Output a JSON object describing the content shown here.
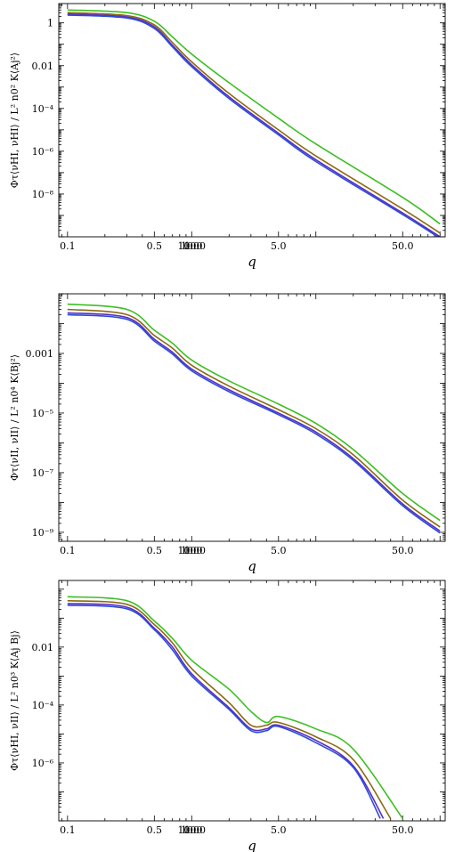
{
  "chart_data": [
    {
      "type": "line",
      "title": "",
      "xlabel": "q",
      "ylabel": "Φτ⟨νHI, νHI⟩ / L² n0² K⟨Aj²⟩",
      "xscale": "log",
      "yscale": "log",
      "xlim": [
        0.085,
        110
      ],
      "ylim": [
        1e-10,
        8
      ],
      "xticks": [
        "0.1",
        "0.5",
        "1.0",
        "5.0",
        "10.0",
        "50.0",
        "100.0"
      ],
      "yticks": [
        "1",
        "0.01",
        "10⁻⁴",
        "10⁻⁶",
        "10⁻⁸"
      ],
      "legend": "none",
      "series": [
        {
          "color": "#3CBF22",
          "values": [
            [
              0.1,
              4.0
            ],
            [
              0.3,
              3.0
            ],
            [
              0.5,
              1.2
            ],
            [
              0.7,
              0.22
            ],
            [
              1.0,
              0.035
            ],
            [
              2.0,
              0.0016
            ],
            [
              5.0,
              3.5e-05
            ],
            [
              10.0,
              2.2e-06
            ],
            [
              50.0,
              7e-09
            ],
            [
              100.0,
              4e-10
            ]
          ]
        },
        {
          "color": "#8B6A10",
          "values": [
            [
              0.1,
              3.0
            ],
            [
              0.3,
              2.2
            ],
            [
              0.5,
              0.8
            ],
            [
              0.7,
              0.12
            ],
            [
              1.0,
              0.015
            ],
            [
              2.0,
              0.0005
            ],
            [
              5.0,
              1e-05
            ],
            [
              10.0,
              6e-07
            ],
            [
              50.0,
              2e-09
            ],
            [
              100.0,
              1.5e-10
            ]
          ]
        },
        {
          "color": "#5A2FC0",
          "values": [
            [
              0.1,
              2.6
            ],
            [
              0.3,
              1.9
            ],
            [
              0.5,
              0.65
            ],
            [
              0.7,
              0.09
            ],
            [
              1.0,
              0.011
            ],
            [
              2.0,
              0.00035
            ],
            [
              5.0,
              7e-06
            ],
            [
              10.0,
              4e-07
            ],
            [
              50.0,
              1.3e-09
            ],
            [
              100.0,
              1e-10
            ]
          ]
        },
        {
          "color": "#2B4DDB",
          "values": [
            [
              0.1,
              2.3
            ],
            [
              0.3,
              1.7
            ],
            [
              0.5,
              0.55
            ],
            [
              0.7,
              0.075
            ],
            [
              1.0,
              0.009
            ],
            [
              2.0,
              0.00029
            ],
            [
              5.0,
              5.8e-06
            ],
            [
              10.0,
              3.3e-07
            ],
            [
              50.0,
              1.1e-09
            ],
            [
              100.0,
              8.5e-11
            ]
          ]
        }
      ]
    },
    {
      "type": "line",
      "title": "",
      "xlabel": "q",
      "ylabel": "Φτ⟨νII, νII⟩ / L² n0⁴ K⟨Bj²⟩",
      "xscale": "log",
      "yscale": "log",
      "xlim": [
        0.085,
        110
      ],
      "ylim": [
        5e-10,
        0.1
      ],
      "xticks": [
        "0.1",
        "0.5",
        "1.0",
        "5.0",
        "10.0",
        "50.0",
        "100.0"
      ],
      "yticks": [
        "0.001",
        "10⁻⁵",
        "10⁻⁷",
        "10⁻⁹"
      ],
      "legend": "none",
      "series": [
        {
          "color": "#3CBF22",
          "values": [
            [
              0.1,
              0.045
            ],
            [
              0.3,
              0.03
            ],
            [
              0.5,
              0.006
            ],
            [
              0.7,
              0.0022
            ],
            [
              1.0,
              0.0006
            ],
            [
              2.0,
              0.00012
            ],
            [
              5.0,
              2e-05
            ],
            [
              10.0,
              4.5e-06
            ],
            [
              20.0,
              6e-07
            ],
            [
              50.0,
              2e-08
            ],
            [
              100.0,
              2.5e-09
            ]
          ]
        },
        {
          "color": "#8B6A10",
          "values": [
            [
              0.1,
              0.03
            ],
            [
              0.3,
              0.02
            ],
            [
              0.5,
              0.004
            ],
            [
              0.7,
              0.0015
            ],
            [
              1.0,
              0.0004
            ],
            [
              2.0,
              8e-05
            ],
            [
              5.0,
              1.3e-05
            ],
            [
              10.0,
              3e-06
            ],
            [
              20.0,
              4e-07
            ],
            [
              50.0,
              1.2e-08
            ],
            [
              100.0,
              1.5e-09
            ]
          ]
        },
        {
          "color": "#5A2FC0",
          "values": [
            [
              0.1,
              0.023
            ],
            [
              0.3,
              0.016
            ],
            [
              0.5,
              0.003
            ],
            [
              0.7,
              0.0011
            ],
            [
              1.0,
              0.0003
            ],
            [
              2.0,
              6e-05
            ],
            [
              5.0,
              1e-05
            ],
            [
              10.0,
              2.3e-06
            ],
            [
              20.0,
              3e-07
            ],
            [
              50.0,
              9e-09
            ],
            [
              100.0,
              1.1e-09
            ]
          ]
        },
        {
          "color": "#2B4DDB",
          "values": [
            [
              0.1,
              0.02
            ],
            [
              0.3,
              0.014
            ],
            [
              0.5,
              0.0026
            ],
            [
              0.7,
              0.00095
            ],
            [
              1.0,
              0.00026
            ],
            [
              2.0,
              5.2e-05
            ],
            [
              5.0,
              8.8e-06
            ],
            [
              10.0,
              2e-06
            ],
            [
              20.0,
              2.6e-07
            ],
            [
              50.0,
              7.8e-09
            ],
            [
              100.0,
              9.5e-10
            ]
          ]
        }
      ]
    },
    {
      "type": "line",
      "title": "",
      "xlabel": "q",
      "ylabel": "Φτ⟨νHI, νII⟩ / L² n0³ K⟨Aj Bj⟩",
      "xscale": "log",
      "yscale": "log",
      "xlim": [
        0.085,
        110
      ],
      "ylim": [
        1e-08,
        2
      ],
      "xticks": [
        "0.1",
        "0.5",
        "1.0",
        "5.0",
        "10.0",
        "50.0",
        "100.0"
      ],
      "yticks": [
        "0.01",
        "10⁻⁴",
        "10⁻⁶"
      ],
      "legend": "none",
      "note_dashed": "dashed segments show negative values (absolute value plotted)",
      "series": [
        {
          "color": "#3CBF22",
          "values": [
            [
              0.1,
              0.55
            ],
            [
              0.3,
              0.4
            ],
            [
              0.5,
              0.08
            ],
            [
              0.7,
              0.02
            ],
            [
              1.0,
              0.0035
            ],
            [
              2.0,
              0.00035
            ],
            [
              3.0,
              6e-05
            ],
            [
              4.0,
              2.5e-05
            ],
            [
              5.0,
              4e-05
            ],
            [
              10.0,
              1.5e-05
            ],
            [
              20.0,
              3e-06
            ],
            [
              50.0,
              1.2e-08
            ]
          ]
        },
        {
          "color": "#8B6A10",
          "values": [
            [
              0.1,
              0.4
            ],
            [
              0.3,
              0.3
            ],
            [
              0.5,
              0.06
            ],
            [
              0.7,
              0.014
            ],
            [
              1.0,
              0.0018
            ],
            [
              2.0,
              0.00012
            ],
            [
              3.0,
              2e-05
            ],
            [
              4.0,
              2e-05
            ],
            [
              5.0,
              2.5e-05
            ],
            [
              10.0,
              8e-06
            ],
            [
              20.0,
              1.3e-06
            ],
            [
              40.0,
              1.2e-08
            ]
          ]
        },
        {
          "color": "#5A2FC0",
          "values": [
            [
              0.1,
              0.32
            ],
            [
              0.3,
              0.24
            ],
            [
              0.5,
              0.045
            ],
            [
              0.7,
              0.01
            ],
            [
              1.0,
              0.0012
            ],
            [
              2.0,
              8e-05
            ],
            [
              3.0,
              1.5e-05
            ],
            [
              4.0,
              1.5e-05
            ],
            [
              5.0,
              2e-05
            ],
            [
              10.0,
              6e-06
            ],
            [
              20.0,
              8e-07
            ],
            [
              35.0,
              1.2e-08
            ]
          ]
        },
        {
          "color": "#2B4DDB",
          "values": [
            [
              0.1,
              0.28
            ],
            [
              0.3,
              0.21
            ],
            [
              0.5,
              0.04
            ],
            [
              0.7,
              0.008
            ],
            [
              1.0,
              0.001
            ],
            [
              2.0,
              7e-05
            ],
            [
              3.0,
              1.3e-05
            ],
            [
              4.0,
              1.3e-05
            ],
            [
              5.0,
              1.8e-05
            ],
            [
              10.0,
              5e-06
            ],
            [
              20.0,
              7e-07
            ],
            [
              33.0,
              1.2e-08
            ]
          ]
        }
      ]
    }
  ]
}
